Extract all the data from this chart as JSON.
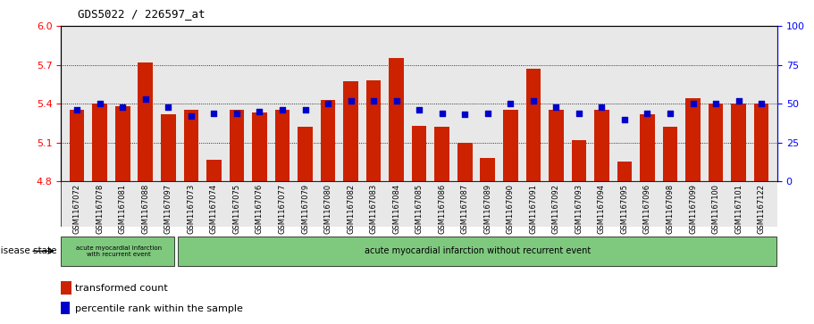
{
  "title": "GDS5022 / 226597_at",
  "samples": [
    "GSM1167072",
    "GSM1167078",
    "GSM1167081",
    "GSM1167088",
    "GSM1167097",
    "GSM1167073",
    "GSM1167074",
    "GSM1167075",
    "GSM1167076",
    "GSM1167077",
    "GSM1167079",
    "GSM1167080",
    "GSM1167082",
    "GSM1167083",
    "GSM1167084",
    "GSM1167085",
    "GSM1167086",
    "GSM1167087",
    "GSM1167089",
    "GSM1167090",
    "GSM1167091",
    "GSM1167092",
    "GSM1167093",
    "GSM1167094",
    "GSM1167095",
    "GSM1167096",
    "GSM1167098",
    "GSM1167099",
    "GSM1167100",
    "GSM1167101",
    "GSM1167122"
  ],
  "bar_values": [
    5.35,
    5.4,
    5.38,
    5.72,
    5.32,
    5.35,
    4.97,
    5.35,
    5.33,
    5.35,
    5.22,
    5.43,
    5.57,
    5.58,
    5.75,
    5.23,
    5.22,
    5.1,
    4.98,
    5.35,
    5.67,
    5.35,
    5.12,
    5.35,
    4.95,
    5.32,
    5.22,
    5.44,
    5.4,
    5.4,
    5.4
  ],
  "percentile_values": [
    46,
    50,
    48,
    53,
    48,
    42,
    44,
    44,
    45,
    46,
    46,
    50,
    52,
    52,
    52,
    46,
    44,
    43,
    44,
    50,
    52,
    48,
    44,
    48,
    40,
    44,
    44,
    50,
    50,
    52,
    50
  ],
  "ylim_left": [
    4.8,
    6.0
  ],
  "ylim_right": [
    0,
    100
  ],
  "yticks_left": [
    4.8,
    5.1,
    5.4,
    5.7,
    6.0
  ],
  "yticks_right": [
    0,
    25,
    50,
    75,
    100
  ],
  "bar_color": "#cc2200",
  "percentile_color": "#0000cc",
  "grid_color": "#000000",
  "plot_bg_color": "#e8e8e8",
  "disease_group1_count": 5,
  "disease_group1_label": "acute myocardial infarction\nwith recurrent event",
  "disease_group2_label": "acute myocardial infarction without recurrent event",
  "legend_bar_label": "transformed count",
  "legend_pct_label": "percentile rank within the sample",
  "disease_state_label": "disease state"
}
